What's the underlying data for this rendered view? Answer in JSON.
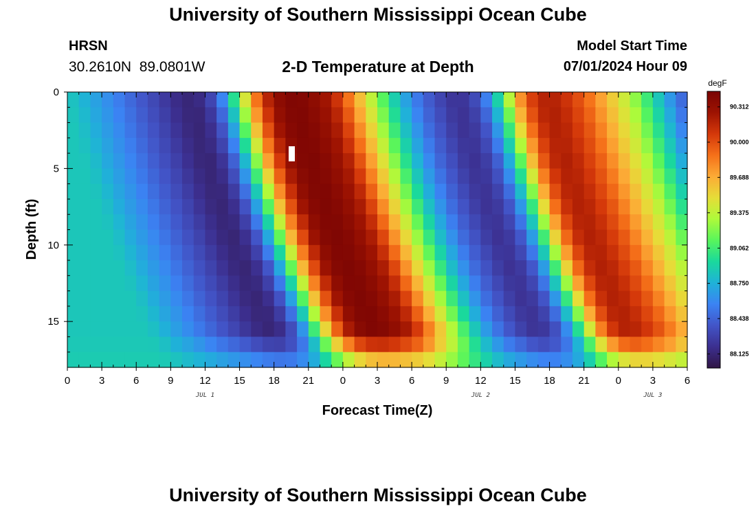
{
  "header": {
    "main_title": "University of Southern Mississippi Ocean Cube",
    "station": "HRSN",
    "coords": "30.2610N  89.0801W",
    "chart_title": "2-D Temperature at Depth",
    "model_label": "Model Start Time",
    "model_time": "07/01/2024 Hour 09",
    "bottom_title": "University of Southern Mississippi Ocean Cube"
  },
  "colors": {
    "colormap": [
      "#301545",
      "#3c2f8f",
      "#4255c8",
      "#3b83f3",
      "#1fb2d8",
      "#1ad99c",
      "#58f55c",
      "#aefa3a",
      "#e6dd38",
      "#fcab36",
      "#f57019",
      "#d4380a",
      "#9d1302",
      "#7a0403"
    ]
  },
  "chart_data": {
    "type": "heatmap",
    "title": "2-D Temperature at Depth",
    "xlabel": "Forecast Time(Z)",
    "ylabel": "Depth (ft)",
    "x_tick_labels": [
      "0",
      "3",
      "6",
      "9",
      "12",
      "15",
      "18",
      "21",
      "0",
      "3",
      "6",
      "9",
      "12",
      "15",
      "18",
      "21",
      "0",
      "3",
      "6"
    ],
    "x_start_hour": 0,
    "x_end_hour": 54,
    "date_labels": [
      {
        "label": "JUL 1",
        "hour": 12
      },
      {
        "label": "JUL 2",
        "hour": 36
      },
      {
        "label": "JUL 3",
        "hour": 51
      }
    ],
    "y_ticks": [
      0,
      5,
      10,
      15
    ],
    "ylim": [
      0,
      18
    ],
    "colorbar": {
      "unit": "degF",
      "min": 88.0,
      "max": 90.45,
      "tick_labels": [
        "90.312",
        "90.000",
        "89.688",
        "89.375",
        "89.062",
        "88.750",
        "88.438",
        "88.125"
      ],
      "tick_values": [
        90.312,
        90.0,
        89.688,
        89.375,
        89.062,
        88.75,
        88.438,
        88.125
      ]
    },
    "time_step_hours": 1,
    "depth_levels_ft": [
      0,
      1,
      2,
      3,
      4,
      5,
      6,
      7,
      8,
      9,
      10,
      11,
      12,
      13,
      14,
      15,
      16,
      17,
      18
    ],
    "surface_temperature_degF": [
      88.85,
      88.8,
      88.72,
      88.65,
      88.58,
      88.5,
      88.42,
      88.35,
      88.28,
      88.2,
      88.14,
      88.12,
      88.2,
      88.4,
      88.75,
      89.2,
      89.7,
      90.05,
      90.3,
      90.4,
      90.42,
      90.38,
      90.3,
      90.2,
      90.0,
      89.75,
      89.5,
      89.25,
      89.0,
      88.78,
      88.6,
      88.45,
      88.35,
      88.25,
      88.2,
      88.25,
      88.4,
      88.7,
      89.1,
      89.6,
      89.95,
      90.15,
      90.2,
      90.15,
      90.05,
      89.95,
      89.8,
      89.65,
      89.5,
      89.35,
      89.15,
      88.95,
      88.75,
      88.55,
      88.4
    ]
  }
}
